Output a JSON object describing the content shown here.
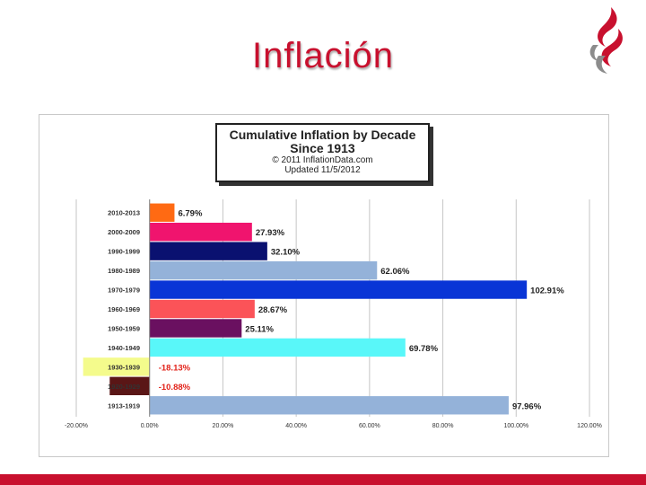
{
  "slide": {
    "title": "Inflación"
  },
  "colors": {
    "title": "#c8102e",
    "band": "#c8102e"
  },
  "chart_data": {
    "type": "bar",
    "orientation": "horizontal",
    "title": "Cumulative Inflation by Decade",
    "subtitle": "Since 1913",
    "source": "© 2011  InflationData.com",
    "updated": "Updated  11/5/2012",
    "xlim": [
      -20,
      120
    ],
    "x_ticks": [
      "-20.00%",
      "0.00%",
      "20.00%",
      "40.00%",
      "60.00%",
      "80.00%",
      "100.00%",
      "120.00%"
    ],
    "grid": "vertical",
    "bars": [
      {
        "category": "2010-2013",
        "value": 6.79,
        "label": "6.79%",
        "color": "#ff6a13",
        "label_color": "#222222"
      },
      {
        "category": "2000-2009",
        "value": 27.93,
        "label": "27.93%",
        "color": "#f0146e",
        "label_color": "#222222"
      },
      {
        "category": "1990-1999",
        "value": 32.1,
        "label": "32.10%",
        "color": "#0a1170",
        "label_color": "#222222"
      },
      {
        "category": "1980-1989",
        "value": 62.06,
        "label": "62.06%",
        "color": "#94b2d9",
        "label_color": "#222222"
      },
      {
        "category": "1970-1979",
        "value": 102.91,
        "label": "102.91%",
        "color": "#0935d6",
        "label_color": "#222222"
      },
      {
        "category": "1960-1969",
        "value": 28.67,
        "label": "28.67%",
        "color": "#fb5358",
        "label_color": "#222222"
      },
      {
        "category": "1950-1959",
        "value": 25.11,
        "label": "25.11%",
        "color": "#6a1060",
        "label_color": "#222222"
      },
      {
        "category": "1940-1949",
        "value": 69.78,
        "label": "69.78%",
        "color": "#59f7f9",
        "label_color": "#222222"
      },
      {
        "category": "1930-1939",
        "value": -18.13,
        "label": "-18.13%",
        "color": "#f4fb8c",
        "label_color": "#e2231a"
      },
      {
        "category": "1920-1929",
        "value": -10.88,
        "label": "-10.88%",
        "color": "#5a1616",
        "label_color": "#e2231a"
      },
      {
        "category": "1913-1919",
        "value": 97.96,
        "label": "97.96%",
        "color": "#94b2d9",
        "label_color": "#222222"
      }
    ]
  }
}
